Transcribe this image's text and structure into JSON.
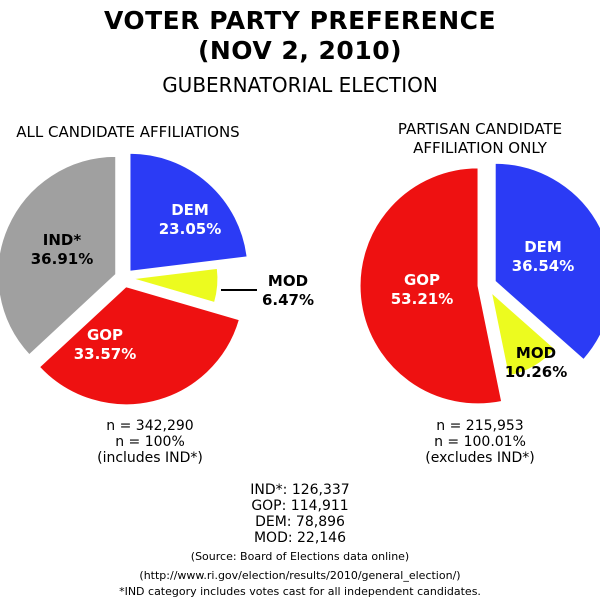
{
  "header": {
    "title_line1": "VOTER PARTY PREFERENCE",
    "title_line2": "(NOV 2, 2010)",
    "subtitle": "GUBERNATORIAL ELECTION"
  },
  "chart_data": [
    {
      "type": "pie",
      "title": "ALL CANDIDATE AFFILIATIONS",
      "slices": [
        {
          "label": "DEM",
          "value": 23.05,
          "value_label": "23.05%",
          "color": "#2b3bf5"
        },
        {
          "label": "MOD",
          "value": 6.47,
          "value_label": "6.47%",
          "color": "#ecfb1f"
        },
        {
          "label": "GOP",
          "value": 33.57,
          "value_label": "33.57%",
          "color": "#ee1111"
        },
        {
          "label": "IND*",
          "value": 36.91,
          "value_label": "36.91%",
          "color": "#a0a0a0"
        }
      ],
      "notes": [
        "n = 342,290",
        "n = 100%",
        "(includes IND*)"
      ]
    },
    {
      "type": "pie",
      "title": "PARTISAN CANDIDATE AFFILIATION ONLY",
      "title_lines": [
        "PARTISAN CANDIDATE",
        "AFFILIATION ONLY"
      ],
      "slices": [
        {
          "label": "DEM",
          "value": 36.54,
          "value_label": "36.54%",
          "color": "#2b3bf5"
        },
        {
          "label": "MOD",
          "value": 10.26,
          "value_label": "10.26%",
          "color": "#ecfb1f"
        },
        {
          "label": "GOP",
          "value": 53.21,
          "value_label": "53.21%",
          "color": "#ee1111"
        }
      ],
      "notes": [
        "n = 215,953",
        "n = 100.01%",
        "(excludes IND*)"
      ]
    }
  ],
  "totals": [
    "IND*: 126,337",
    "GOP: 114,911",
    "DEM: 78,896",
    "MOD: 22,146"
  ],
  "source": "(Source: Board of Elections data online)",
  "url": "(http://www.ri.gov/election/results/2010/general_election/)",
  "footnote": "*IND category includes votes cast for all independent candidates."
}
